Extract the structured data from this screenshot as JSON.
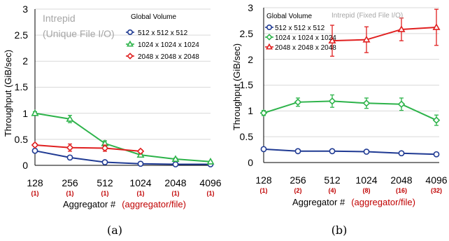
{
  "chart_data": [
    {
      "type": "line",
      "caption": "(a)",
      "annotation": [
        "Intrepid",
        "(Unique File I/O)"
      ],
      "legend_title": "Global Volume",
      "ylabel": "Throughput (GiB/sec)",
      "xlabel": "Aggregator #",
      "xlabel_extra": "(aggregator/file)",
      "ylim": [
        0,
        3
      ],
      "y_ticks": [
        "0",
        "0.5",
        "1",
        "1.5",
        "2",
        "2.5",
        "3"
      ],
      "categories": [
        "128",
        "256",
        "512",
        "1024",
        "2048",
        "4096"
      ],
      "sub_categories": [
        "(1)",
        "(1)",
        "(1)",
        "(1)",
        "(1)",
        "(1)"
      ],
      "series": [
        {
          "name": "512 x 512 x 512",
          "color": "#1f3a93",
          "marker": "circle",
          "values": [
            0.28,
            0.15,
            0.06,
            0.03,
            0.02,
            0.02
          ],
          "errors": [
            0.03,
            0.02,
            0.01,
            0.01,
            0.01,
            0.01
          ]
        },
        {
          "name": "1024 x 1024 x 1024",
          "color": "#2db34a",
          "marker": "triangle",
          "values": [
            1.0,
            0.89,
            0.42,
            0.2,
            0.12,
            0.07
          ],
          "errors": [
            0.03,
            0.07,
            0.05,
            0.02,
            0.02,
            0.01
          ]
        },
        {
          "name": "2048 x 2048 x 2048",
          "color": "#e02020",
          "marker": "diamond",
          "values": [
            0.39,
            0.34,
            0.33,
            0.27,
            null,
            null
          ],
          "errors": [
            0.03,
            0.07,
            0.06,
            0.03,
            null,
            null
          ]
        }
      ]
    },
    {
      "type": "line",
      "caption": "(b)",
      "annotation": [
        "Intrepid (Fixed File I/O)"
      ],
      "legend_title": "Global Volume",
      "ylabel": "Throughput (GiB/sec)",
      "xlabel": "Aggregator #",
      "xlabel_extra": "(aggregator/file)",
      "ylim": [
        0,
        3
      ],
      "y_ticks": [
        "0",
        "0.5",
        "1",
        "1.5",
        "2",
        "2.5",
        "3"
      ],
      "categories": [
        "128",
        "256",
        "512",
        "1024",
        "2048",
        "4096"
      ],
      "sub_categories": [
        "(1)",
        "(2)",
        "(4)",
        "(8)",
        "(16)",
        "(32)"
      ],
      "series": [
        {
          "name": "512 x 512 x 512",
          "color": "#1f3a93",
          "marker": "circle",
          "values": [
            0.26,
            0.22,
            0.22,
            0.21,
            0.18,
            0.16
          ],
          "errors": [
            0.03,
            0.02,
            0.02,
            0.02,
            0.02,
            0.02
          ]
        },
        {
          "name": "1024 x 1024 x 1024",
          "color": "#2db34a",
          "marker": "diamond",
          "values": [
            0.96,
            1.17,
            1.19,
            1.15,
            1.13,
            0.82
          ],
          "errors": [
            0.05,
            0.08,
            0.12,
            0.1,
            0.12,
            0.1
          ]
        },
        {
          "name": "2048 x 2048 x 2048",
          "color": "#e02020",
          "marker": "triangle",
          "values": [
            null,
            null,
            2.36,
            2.38,
            2.58,
            2.62
          ],
          "errors": [
            null,
            null,
            0.3,
            0.25,
            0.22,
            0.35
          ]
        }
      ]
    }
  ]
}
